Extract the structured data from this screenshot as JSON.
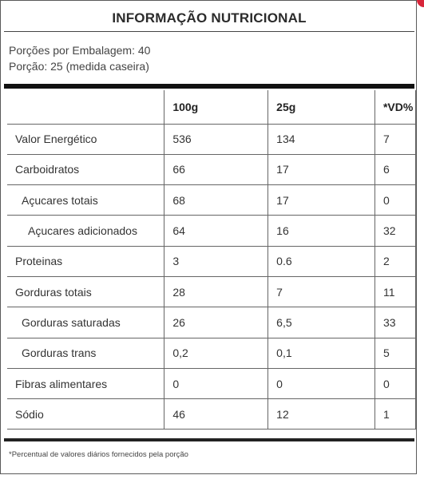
{
  "title": "INFORMAÇÃO NUTRICIONAL",
  "servings": {
    "per_package": "Porções por Embalagem: 40",
    "portion": "Porção: 25 (medida caseira)"
  },
  "table": {
    "headers": [
      "",
      "100g",
      "25g",
      "*VD%"
    ],
    "rows": [
      {
        "name": "Valor Energético",
        "v100": "536",
        "v25": "134",
        "vd": "7"
      },
      {
        "name": "Carboidratos",
        "v100": "66",
        "v25": "17",
        "vd": "6"
      },
      {
        "name": "Açucares totais",
        "v100": "68",
        "v25": "17",
        "vd": "0"
      },
      {
        "name": "Açucares adicionados",
        "v100": "64",
        "v25": "16",
        "vd": "32"
      },
      {
        "name": "Proteinas",
        "v100": "3",
        "v25": "0.6",
        "vd": "2"
      },
      {
        "name": "Gorduras totais",
        "v100": "28",
        "v25": "7",
        "vd": "11"
      },
      {
        "name": "Gorduras saturadas",
        "v100": "26",
        "v25": "6,5",
        "vd": "33"
      },
      {
        "name": "Gorduras trans",
        "v100": "0,2",
        "v25": "0,1",
        "vd": "5"
      },
      {
        "name": "Fibras alimentares",
        "v100": "0",
        "v25": "0",
        "vd": "0"
      },
      {
        "name": "Sódio",
        "v100": "46",
        "v25": "12",
        "vd": "1"
      }
    ]
  },
  "footnote": "*Percentual de valores diários fornecidos pela porção",
  "colors": {
    "corner_accent": "#d8253a",
    "text": "#333333",
    "rules": "#111111"
  }
}
